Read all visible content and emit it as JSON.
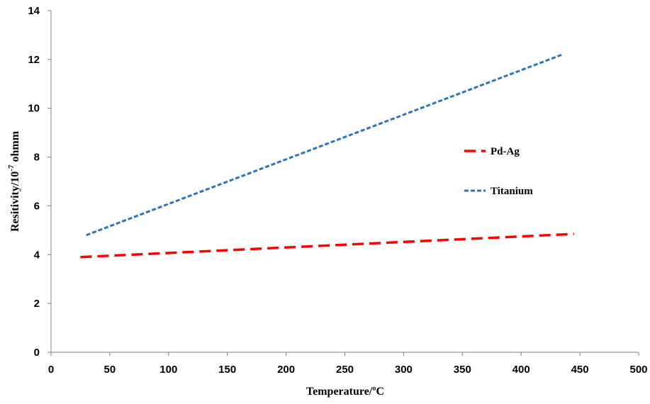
{
  "chart_data": {
    "type": "line",
    "title": "",
    "xlabel": "Temperature/ºC",
    "ylabel_main": "Resitivity/10",
    "ylabel_exp": "-7",
    "ylabel_unit": " ohmm",
    "xlim": [
      0,
      500
    ],
    "ylim": [
      0,
      14
    ],
    "x_ticks": [
      0,
      50,
      100,
      150,
      200,
      250,
      300,
      350,
      400,
      450,
      500
    ],
    "y_ticks": [
      0,
      2,
      4,
      6,
      8,
      10,
      12,
      14
    ],
    "grid": false,
    "legend_position": "right",
    "series": [
      {
        "name": "Pd-Ag",
        "color": "#ff0000",
        "dash": "long-dash",
        "x": [
          25,
          445
        ],
        "y": [
          3.9,
          4.85
        ]
      },
      {
        "name": "Titanium",
        "color": "#2e75b6",
        "dash": "short-dash",
        "x": [
          30,
          435
        ],
        "y": [
          4.8,
          12.2
        ]
      }
    ]
  }
}
